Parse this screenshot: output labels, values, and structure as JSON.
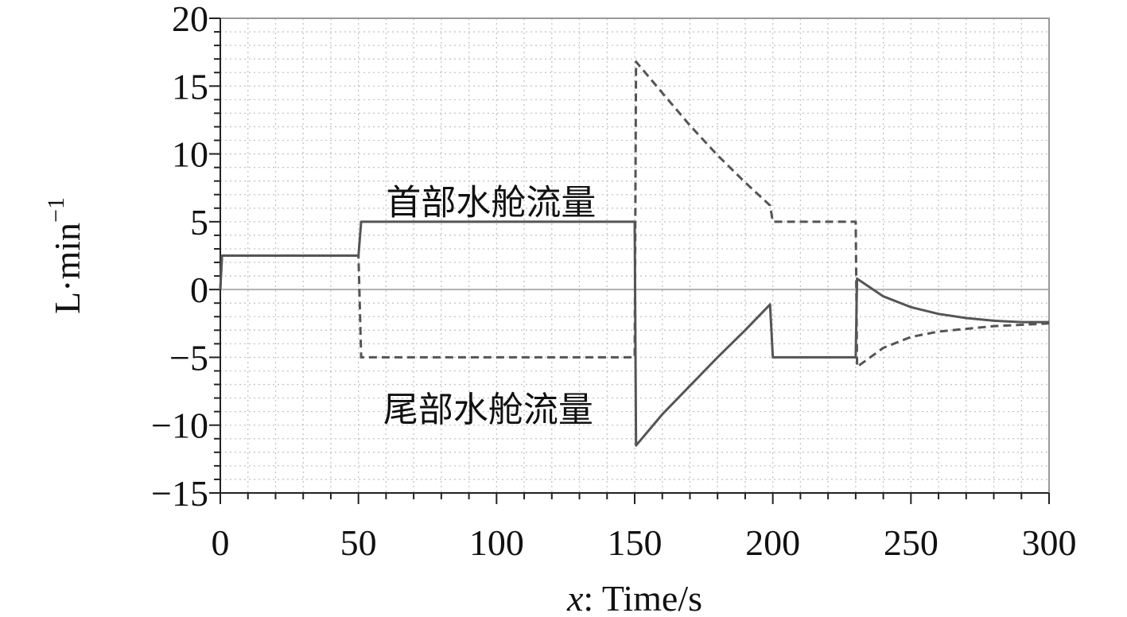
{
  "chart_data": {
    "type": "line",
    "xlabel_var": "x",
    "xlabel_rest": ": Time/s",
    "ylabel_base": "L·min",
    "ylabel_sup": "−1",
    "xlim": [
      0,
      300
    ],
    "ylim": [
      -15,
      20
    ],
    "x_ticks": [
      0,
      50,
      100,
      150,
      200,
      250,
      300
    ],
    "y_ticks": [
      20,
      15,
      10,
      5,
      0,
      -5,
      -10,
      -15
    ],
    "y_tick_labels": [
      "20",
      "15",
      "10",
      "5",
      "0",
      "−5",
      "−10",
      "−15"
    ],
    "grid": true,
    "series": [
      {
        "name": "首部水舱流量",
        "style": "solid",
        "color": "#555555",
        "points": [
          [
            0,
            0
          ],
          [
            0.6,
            2.5
          ],
          [
            50,
            2.5
          ],
          [
            51,
            5
          ],
          [
            150,
            5
          ],
          [
            150.5,
            -11.5
          ],
          [
            160,
            -9.2
          ],
          [
            170,
            -7.1
          ],
          [
            180,
            -5
          ],
          [
            190,
            -3
          ],
          [
            199,
            -1.1
          ],
          [
            200,
            -5
          ],
          [
            230,
            -5
          ],
          [
            230.5,
            0.8
          ],
          [
            240,
            -0.5
          ],
          [
            250,
            -1.3
          ],
          [
            260,
            -1.8
          ],
          [
            270,
            -2.1
          ],
          [
            280,
            -2.3
          ],
          [
            290,
            -2.4
          ],
          [
            300,
            -2.4
          ]
        ]
      },
      {
        "name": "尾部水舱流量",
        "style": "dashed",
        "color": "#555555",
        "points": [
          [
            0,
            0
          ],
          [
            0.6,
            2.5
          ],
          [
            50,
            2.5
          ],
          [
            51,
            -5
          ],
          [
            150,
            -5
          ],
          [
            150.5,
            16.8
          ],
          [
            160,
            14.5
          ],
          [
            170,
            12.1
          ],
          [
            180,
            9.9
          ],
          [
            190,
            7.9
          ],
          [
            199,
            6.2
          ],
          [
            200,
            5
          ],
          [
            230,
            5
          ],
          [
            230.5,
            -5.7
          ],
          [
            240,
            -4.3
          ],
          [
            250,
            -3.5
          ],
          [
            260,
            -3.1
          ],
          [
            270,
            -2.9
          ],
          [
            280,
            -2.7
          ],
          [
            290,
            -2.6
          ],
          [
            300,
            -2.5
          ]
        ]
      }
    ],
    "annotations": [
      {
        "text": "首部水舱流量",
        "x": 98,
        "y": 6.5
      },
      {
        "text": "尾部水舱流量",
        "x": 97,
        "y": -8.8
      }
    ]
  }
}
